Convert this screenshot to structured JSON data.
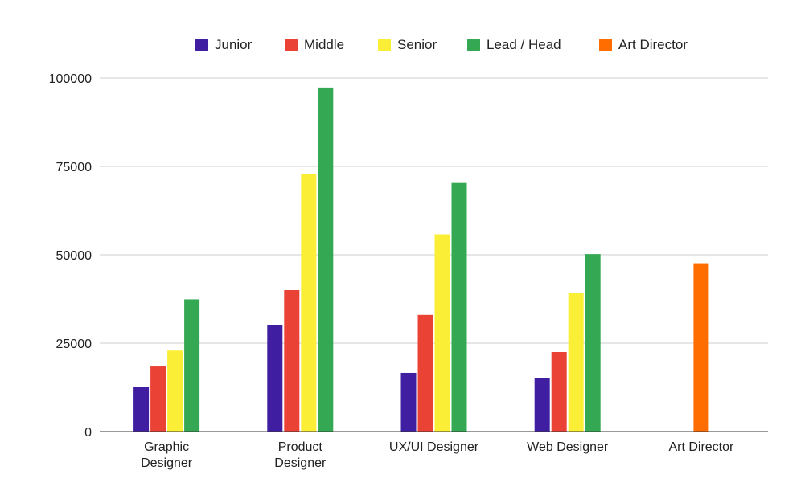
{
  "chart_data": {
    "type": "bar",
    "title": "",
    "xlabel": "",
    "ylabel": "",
    "categories": [
      [
        "Graphic",
        "Designer"
      ],
      [
        "Product",
        "Designer"
      ],
      [
        "UX/UI Designer"
      ],
      [
        "Web Designer"
      ],
      [
        "Art Director"
      ]
    ],
    "series": [
      {
        "name": "Junior",
        "color": "#3f1ea1",
        "values": [
          12500,
          30200,
          16600,
          15200,
          null
        ]
      },
      {
        "name": "Middle",
        "color": "#ea4335",
        "values": [
          18400,
          40000,
          33000,
          22500,
          null
        ]
      },
      {
        "name": "Senior",
        "color": "#fbee37",
        "values": [
          22900,
          72900,
          55800,
          39200,
          null
        ]
      },
      {
        "name": "Lead / Head",
        "color": "#34a853",
        "values": [
          37400,
          97300,
          70300,
          50200,
          null
        ]
      },
      {
        "name": "Art Director",
        "color": "#ff6d01",
        "values": [
          null,
          null,
          null,
          null,
          47600
        ]
      }
    ],
    "ylim": [
      0,
      100000
    ],
    "yticks": [
      0,
      25000,
      50000,
      75000,
      100000
    ],
    "grid": true,
    "legend_position": "top"
  }
}
